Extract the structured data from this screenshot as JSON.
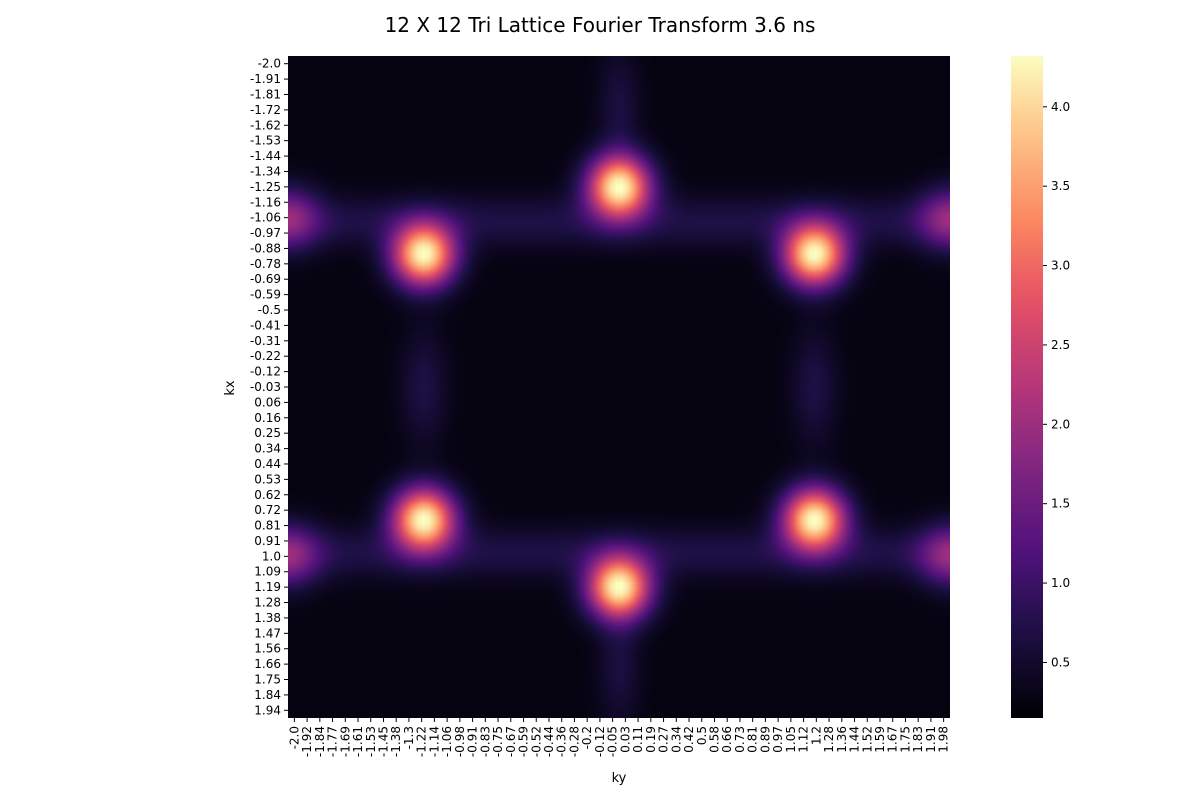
{
  "chart_data": {
    "type": "heatmap",
    "title": "12 X 12 Tri Lattice Fourier Transform 3.6 ns",
    "xlabel": "ky",
    "ylabel": "kx",
    "colormap": "magma",
    "x_tick_labels": [
      "-2.0",
      "-1.92",
      "-1.84",
      "-1.77",
      "-1.69",
      "-1.61",
      "-1.53",
      "-1.45",
      "-1.38",
      "-1.3",
      "-1.22",
      "-1.14",
      "-1.06",
      "-0.98",
      "-0.91",
      "-0.83",
      "-0.75",
      "-0.67",
      "-0.59",
      "-0.52",
      "-0.44",
      "-0.36",
      "-0.28",
      "-0.2",
      "-0.12",
      "-0.05",
      "0.03",
      "0.11",
      "0.19",
      "0.27",
      "0.34",
      "0.42",
      "0.5",
      "0.58",
      "0.66",
      "0.73",
      "0.81",
      "0.89",
      "0.97",
      "1.05",
      "1.12",
      "1.2",
      "1.28",
      "1.36",
      "1.44",
      "1.52",
      "1.59",
      "1.67",
      "1.75",
      "1.83",
      "1.91",
      "1.98"
    ],
    "y_tick_labels": [
      "-2.0",
      "-1.91",
      "-1.81",
      "-1.72",
      "-1.62",
      "-1.53",
      "-1.44",
      "-1.34",
      "-1.25",
      "-1.16",
      "-1.06",
      "-0.97",
      "-0.88",
      "-0.78",
      "-0.69",
      "-0.59",
      "-0.5",
      "-0.41",
      "-0.31",
      "-0.22",
      "-0.12",
      "-0.03",
      "0.06",
      "0.16",
      "0.25",
      "0.34",
      "0.44",
      "0.53",
      "0.62",
      "0.72",
      "0.81",
      "0.91",
      "1.0",
      "1.09",
      "1.19",
      "1.28",
      "1.38",
      "1.47",
      "1.56",
      "1.66",
      "1.75",
      "1.84",
      "1.94"
    ],
    "x_range": [
      -2.0,
      2.0
    ],
    "y_range": [
      -2.0,
      2.0
    ],
    "baseline": 0.25,
    "peaks": [
      {
        "kx": -1.21,
        "ky": 0.0,
        "value": 4.3
      },
      {
        "kx": -0.8,
        "ky": -1.18,
        "value": 4.3
      },
      {
        "kx": -0.8,
        "ky": 1.18,
        "value": 4.3
      },
      {
        "kx": 0.8,
        "ky": -1.18,
        "value": 4.3
      },
      {
        "kx": 0.8,
        "ky": 1.18,
        "value": 4.3
      },
      {
        "kx": 1.21,
        "ky": 0.0,
        "value": 4.3
      },
      {
        "kx": -1.02,
        "ky": -2.0,
        "value": 1.6
      },
      {
        "kx": -1.02,
        "ky": 2.0,
        "value": 1.6
      },
      {
        "kx": 1.02,
        "ky": -2.0,
        "value": 1.6
      },
      {
        "kx": 1.02,
        "ky": 2.0,
        "value": 1.6
      }
    ],
    "colorbar": {
      "min": 0.15,
      "max": 4.32,
      "ticks": [
        0.5,
        1.0,
        1.5,
        2.0,
        2.5,
        3.0,
        3.5,
        4.0
      ],
      "tick_labels": [
        "0.5",
        "1.0",
        "1.5",
        "2.0",
        "2.5",
        "3.0",
        "3.5",
        "4.0"
      ]
    }
  }
}
